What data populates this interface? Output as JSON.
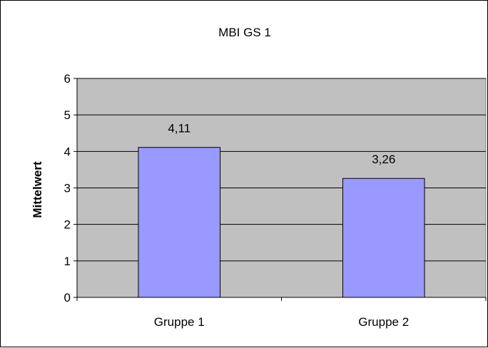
{
  "chart_data": {
    "type": "bar",
    "title": "MBI GS 1",
    "xlabel": "",
    "ylabel": "Mittelwert",
    "categories": [
      "Gruppe 1",
      "Gruppe 2"
    ],
    "values": [
      4.11,
      3.26
    ],
    "value_labels": [
      "4,11",
      "3,26"
    ],
    "ylim": [
      0,
      6
    ],
    "yticks": [
      0,
      1,
      2,
      3,
      4,
      5,
      6
    ],
    "grid": true,
    "legend": "none"
  },
  "colors": {
    "plot_background": "#c0c0c0",
    "bar_fill": "#9999ff",
    "bar_stroke": "#000000",
    "gridline": "#000000"
  }
}
